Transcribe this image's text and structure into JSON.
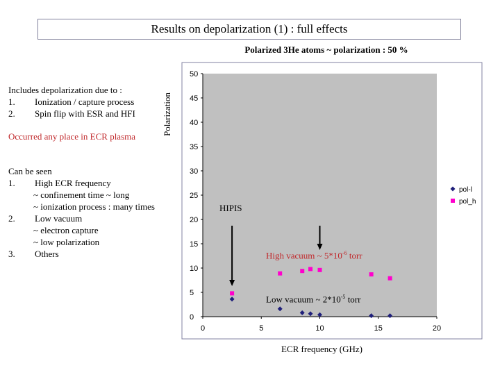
{
  "slide": {
    "title": "Results on depolarization (1) : full effects",
    "subtitle": "Polarized 3He atoms ~ polarization : 50 %",
    "includes": {
      "heading": "Includes depolarization due to :",
      "items": [
        {
          "num": "1.",
          "text": "Ionization / capture process"
        },
        {
          "num": "2.",
          "text": "Spin flip with ESR and HFI"
        }
      ]
    },
    "occurred": "Occurred any place in ECR plasma",
    "seen": {
      "heading": "Can be seen",
      "items": [
        {
          "num": "1.",
          "text": "High ECR frequency",
          "sub": [
            "~ confinement time ~ long",
            "~ ionization process : many times"
          ]
        },
        {
          "num": "2.",
          "text": "Low vacuum",
          "sub": [
            "~ electron capture",
            "~ low polarization"
          ]
        },
        {
          "num": "3.",
          "text": "Others",
          "sub": []
        }
      ]
    }
  },
  "annotations": {
    "hipis": "HIPIS",
    "high_vacuum_prefix": "High vacuum ~ 5*10",
    "high_vacuum_exp": "-6",
    "high_vacuum_unit": " torr",
    "low_vacuum_prefix": "Low vacuum ~ 2*10",
    "low_vacuum_exp": "-5",
    "low_vacuum_unit": " torr"
  },
  "colors": {
    "plot_bg": "#c0c0c0",
    "pol_l": "#1f1f7a",
    "pol_h": "#ff00cc",
    "arrow": "#000000",
    "red_text": "#c0282b"
  },
  "chart_data": {
    "type": "scatter",
    "title": "",
    "xlabel": "ECR frequency (GHz)",
    "ylabel": "Polarization",
    "xlim": [
      0,
      20
    ],
    "ylim": [
      0,
      50
    ],
    "xticks": [
      0,
      5,
      10,
      15,
      20
    ],
    "yticks": [
      0,
      5,
      10,
      15,
      20,
      25,
      30,
      35,
      40,
      45,
      50
    ],
    "legend_position": "right",
    "series": [
      {
        "name": "pol-l",
        "marker": "diamond",
        "x": [
          2.5,
          6.6,
          8.5,
          9.2,
          10.0,
          14.4,
          16.0
        ],
        "y": [
          3.6,
          1.6,
          0.8,
          0.6,
          0.4,
          0.2,
          0.2
        ]
      },
      {
        "name": "pol_h",
        "marker": "square",
        "x": [
          2.5,
          6.6,
          8.5,
          9.2,
          10.0,
          14.4,
          16.0
        ],
        "y": [
          4.8,
          8.9,
          9.4,
          9.8,
          9.6,
          8.7,
          7.9
        ]
      }
    ]
  }
}
